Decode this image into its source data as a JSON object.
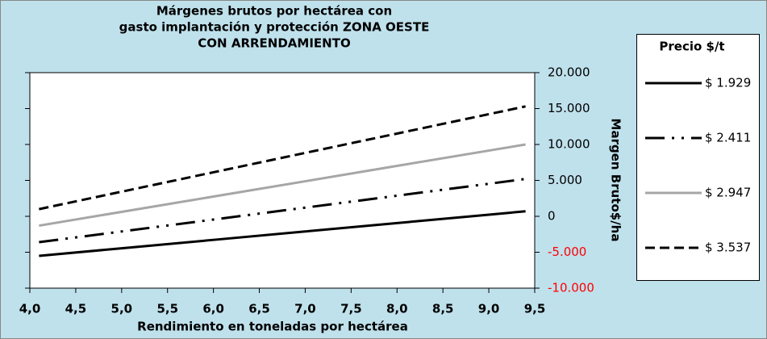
{
  "chart_data": {
    "type": "line",
    "title": [
      "Márgenes brutos por hectárea con",
      "gasto implantación y protección ZONA OESTE",
      "CON ARRENDAMIENTO"
    ],
    "x_label": "Rendimiento en toneladas por hectárea",
    "y_label": "Margen Bruto$/ha",
    "legend_title": "Precio $/t",
    "legend_position": "right",
    "negative_label_color": "#ff0000",
    "x": [
      4.1,
      5.0,
      6.0,
      7.0,
      8.0,
      9.0,
      9.4
    ],
    "series": [
      {
        "name": "$ 1.929",
        "color": "#000000",
        "dash": "solid",
        "values": [
          -5500,
          -4450,
          -3280,
          -2110,
          -940,
          230,
          700
        ]
      },
      {
        "name": "$ 2.411",
        "color": "#000000",
        "dash": "dash-dot-dot",
        "values": [
          -3600,
          -2110,
          -450,
          1210,
          2870,
          4530,
          5200
        ]
      },
      {
        "name": "$ 2.947",
        "color": "#a6a6a6",
        "dash": "solid",
        "values": [
          -1300,
          620,
          2750,
          4880,
          7020,
          9150,
          10000
        ]
      },
      {
        "name": "$ 3.537",
        "color": "#000000",
        "dash": "dash",
        "values": [
          1000,
          3430,
          6130,
          8830,
          11520,
          14220,
          15300
        ]
      }
    ],
    "xlim": [
      4,
      9.5
    ],
    "xticks": [
      {
        "value": 4,
        "label": "4,0"
      },
      {
        "value": 4.5,
        "label": "4,5"
      },
      {
        "value": 5,
        "label": "5,0"
      },
      {
        "value": 5.5,
        "label": "5,5"
      },
      {
        "value": 6,
        "label": "6,0"
      },
      {
        "value": 6.5,
        "label": "6,5"
      },
      {
        "value": 7,
        "label": "7,0"
      },
      {
        "value": 7.5,
        "label": "7,5"
      },
      {
        "value": 8,
        "label": "8,0"
      },
      {
        "value": 8.5,
        "label": "8,5"
      },
      {
        "value": 9,
        "label": "9,0"
      },
      {
        "value": 9.5,
        "label": "9,5"
      }
    ],
    "ylim": [
      -10000,
      20000
    ],
    "yticks": [
      {
        "value": -10000,
        "label": "-10.000"
      },
      {
        "value": -5000,
        "label": "-5.000"
      },
      0,
      {
        "value": 5000,
        "label": "5.000"
      },
      {
        "value": 10000,
        "label": "10.000"
      },
      {
        "value": 15000,
        "label": "15.000"
      },
      {
        "value": 20000,
        "label": "20.000"
      }
    ],
    "grid": false
  }
}
